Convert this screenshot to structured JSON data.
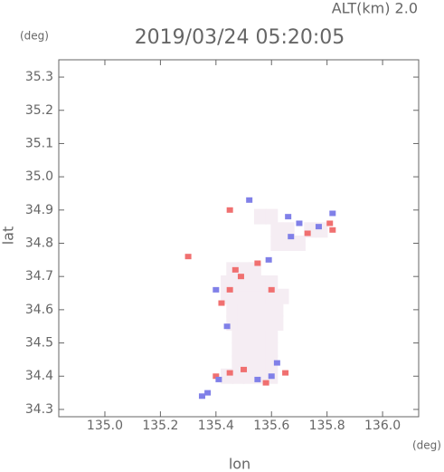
{
  "chart_data": {
    "type": "scatter",
    "title": "2019/03/24 05:20:05",
    "subtitle": "ALT(km) 2.0",
    "ylabel": "lat",
    "xlabel": "lon",
    "y_unit": "(deg)",
    "x_unit": "(deg)",
    "xlim": [
      134.834,
      136.13
    ],
    "ylim": [
      34.278,
      35.352
    ],
    "xticks": [
      {
        "value": 135,
        "label": "135.0"
      },
      135.2,
      135.4,
      135.6,
      135.8,
      {
        "value": 136,
        "label": "136.0"
      }
    ],
    "yticks": [
      34.3,
      34.4,
      34.5,
      34.6,
      34.7,
      34.8,
      34.9,
      {
        "value": 35,
        "label": "35.0"
      },
      35.1,
      35.2,
      35.3
    ],
    "series": [
      {
        "color": "#f5edf3",
        "x": [
          135.44,
          135.48,
          135.52,
          135.56,
          135.6,
          135.48,
          135.52,
          135.56,
          135.6,
          135.48,
          135.52,
          135.56,
          135.6,
          135.48,
          135.52,
          135.56,
          135.6,
          135.46,
          135.5,
          135.54,
          135.58,
          135.62,
          135.46,
          135.5,
          135.54,
          135.58,
          135.62,
          135.44,
          135.48,
          135.52,
          135.56,
          135.6,
          135.64,
          135.44,
          135.48,
          135.52,
          135.56,
          135.6,
          135.46,
          135.5,
          135.54,
          135.62,
          135.66,
          135.7,
          135.62,
          135.66,
          135.74,
          135.78,
          135.56,
          135.6
        ],
        "values": [
          34.4,
          34.4,
          34.4,
          34.4,
          34.4,
          34.44,
          34.44,
          34.44,
          34.44,
          34.48,
          34.48,
          34.48,
          34.48,
          34.52,
          34.52,
          34.52,
          34.52,
          34.56,
          34.56,
          34.56,
          34.56,
          34.56,
          34.6,
          34.6,
          34.6,
          34.6,
          34.6,
          34.64,
          34.64,
          34.64,
          34.64,
          34.64,
          34.64,
          34.68,
          34.68,
          34.68,
          34.68,
          34.68,
          34.72,
          34.72,
          34.72,
          34.8,
          34.8,
          34.8,
          34.84,
          34.84,
          34.84,
          34.84,
          34.88,
          34.88
        ]
      },
      {
        "color": "#f07070",
        "x": [
          135.47,
          135.49,
          135.45,
          135.42,
          135.4,
          135.45,
          135.5,
          135.3,
          135.73,
          135.81,
          135.82,
          135.45,
          135.6,
          135.55,
          135.58,
          135.65
        ],
        "values": [
          34.72,
          34.7,
          34.66,
          34.62,
          34.4,
          34.41,
          34.42,
          34.76,
          34.83,
          34.86,
          34.84,
          34.9,
          34.66,
          34.74,
          34.38,
          34.41
        ]
      },
      {
        "color": "#8080e8",
        "x": [
          135.41,
          135.37,
          135.55,
          135.6,
          135.66,
          135.7,
          135.77,
          135.82,
          135.4,
          135.52,
          135.62,
          135.44,
          135.35,
          135.59,
          135.67
        ],
        "values": [
          34.39,
          34.35,
          34.39,
          34.4,
          34.88,
          34.86,
          34.85,
          34.89,
          34.66,
          34.93,
          34.44,
          34.55,
          34.34,
          34.75,
          34.82
        ]
      }
    ]
  }
}
